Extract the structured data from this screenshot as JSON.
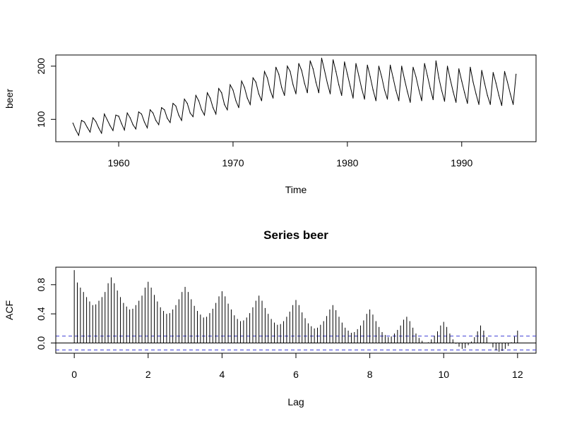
{
  "chart_data": [
    {
      "type": "line",
      "title": "",
      "xlabel": "Time",
      "ylabel": "beer",
      "xlim": [
        1954.5,
        1996.5
      ],
      "ylim": [
        58,
        221
      ],
      "xticks": [
        1960,
        1970,
        1980,
        1990
      ],
      "xtick_labels": [
        "1960",
        "1970",
        "1980",
        "1990"
      ],
      "yticks": [
        100,
        200
      ],
      "ytick_labels": [
        "100",
        "200"
      ],
      "grid": false,
      "x": [
        1956.0,
        1956.25,
        1956.5,
        1956.75,
        1957.0,
        1957.25,
        1957.5,
        1957.75,
        1958.0,
        1958.25,
        1958.5,
        1958.75,
        1959.0,
        1959.25,
        1959.5,
        1959.75,
        1960.0,
        1960.25,
        1960.5,
        1960.75,
        1961.0,
        1961.25,
        1961.5,
        1961.75,
        1962.0,
        1962.25,
        1962.5,
        1962.75,
        1963.0,
        1963.25,
        1963.5,
        1963.75,
        1964.0,
        1964.25,
        1964.5,
        1964.75,
        1965.0,
        1965.25,
        1965.5,
        1965.75,
        1966.0,
        1966.25,
        1966.5,
        1966.75,
        1967.0,
        1967.25,
        1967.5,
        1967.75,
        1968.0,
        1968.25,
        1968.5,
        1968.75,
        1969.0,
        1969.25,
        1969.5,
        1969.75,
        1970.0,
        1970.25,
        1970.5,
        1970.75,
        1971.0,
        1971.25,
        1971.5,
        1971.75,
        1972.0,
        1972.25,
        1972.5,
        1972.75,
        1973.0,
        1973.25,
        1973.5,
        1973.75,
        1974.0,
        1974.25,
        1974.5,
        1974.75,
        1975.0,
        1975.25,
        1975.5,
        1975.75,
        1976.0,
        1976.25,
        1976.5,
        1976.75,
        1977.0,
        1977.25,
        1977.5,
        1977.75,
        1978.0,
        1978.25,
        1978.5,
        1978.75,
        1979.0,
        1979.25,
        1979.5,
        1979.75,
        1980.0,
        1980.25,
        1980.5,
        1980.75,
        1981.0,
        1981.25,
        1981.5,
        1981.75,
        1982.0,
        1982.25,
        1982.5,
        1982.75,
        1983.0,
        1983.25,
        1983.5,
        1983.75,
        1984.0,
        1984.25,
        1984.5,
        1984.75,
        1985.0,
        1985.25,
        1985.5,
        1985.75,
        1986.0,
        1986.25,
        1986.5,
        1986.75,
        1987.0,
        1987.25,
        1987.5,
        1987.75,
        1988.0,
        1988.25,
        1988.5,
        1988.75,
        1989.0,
        1989.25,
        1989.5,
        1989.75,
        1990.0,
        1990.25,
        1990.5,
        1990.75,
        1991.0,
        1991.25,
        1991.5,
        1991.75,
        1992.0,
        1992.25,
        1992.5,
        1992.75,
        1993.0,
        1993.25,
        1993.5,
        1993.75,
        1994.0,
        1994.25,
        1994.5,
        1994.75
      ],
      "y": [
        93,
        80,
        70,
        98,
        95,
        85,
        76,
        103,
        96,
        84,
        74,
        110,
        99,
        88,
        79,
        108,
        106,
        92,
        80,
        112,
        103,
        90,
        82,
        114,
        110,
        95,
        84,
        118,
        112,
        98,
        90,
        122,
        118,
        102,
        94,
        130,
        125,
        108,
        98,
        138,
        130,
        112,
        105,
        145,
        135,
        118,
        108,
        150,
        140,
        122,
        110,
        158,
        150,
        128,
        118,
        165,
        155,
        135,
        122,
        172,
        160,
        140,
        128,
        178,
        170,
        148,
        135,
        190,
        178,
        155,
        140,
        198,
        185,
        160,
        145,
        200,
        190,
        165,
        148,
        205,
        192,
        168,
        150,
        210,
        195,
        170,
        150,
        215,
        192,
        168,
        148,
        212,
        190,
        165,
        145,
        208,
        185,
        162,
        140,
        205,
        182,
        158,
        138,
        202,
        180,
        155,
        135,
        200,
        180,
        155,
        138,
        202,
        178,
        154,
        135,
        200,
        175,
        152,
        132,
        198,
        180,
        156,
        135,
        205,
        182,
        158,
        137,
        210,
        178,
        154,
        134,
        200,
        175,
        152,
        132,
        195,
        172,
        150,
        130,
        198,
        170,
        148,
        128,
        192,
        168,
        145,
        128,
        188,
        168,
        145,
        126,
        190,
        170,
        148,
        128,
        185
      ]
    },
    {
      "type": "bar",
      "title": "Series  beer",
      "xlabel": "Lag",
      "ylabel": "ACF",
      "xlim": [
        -0.5,
        12.5
      ],
      "ylim": [
        -0.14,
        1.04
      ],
      "xticks": [
        0,
        2,
        4,
        6,
        8,
        10,
        12
      ],
      "xtick_labels": [
        "0",
        "2",
        "4",
        "6",
        "8",
        "10",
        "12"
      ],
      "yticks": [
        0.0,
        0.4,
        0.8
      ],
      "ytick_labels": [
        "0.0",
        "0.4",
        "0.8"
      ],
      "grid": false,
      "confidence_bound": 0.095,
      "lag_step": 0.08333,
      "values": [
        1.0,
        0.83,
        0.76,
        0.7,
        0.63,
        0.57,
        0.52,
        0.53,
        0.58,
        0.63,
        0.7,
        0.82,
        0.9,
        0.82,
        0.72,
        0.63,
        0.55,
        0.5,
        0.46,
        0.47,
        0.52,
        0.58,
        0.65,
        0.76,
        0.84,
        0.76,
        0.66,
        0.57,
        0.49,
        0.44,
        0.4,
        0.41,
        0.46,
        0.52,
        0.6,
        0.7,
        0.77,
        0.7,
        0.6,
        0.51,
        0.44,
        0.39,
        0.35,
        0.36,
        0.41,
        0.47,
        0.55,
        0.64,
        0.71,
        0.64,
        0.54,
        0.46,
        0.38,
        0.33,
        0.3,
        0.31,
        0.35,
        0.41,
        0.49,
        0.58,
        0.65,
        0.58,
        0.48,
        0.4,
        0.33,
        0.28,
        0.25,
        0.26,
        0.3,
        0.36,
        0.43,
        0.52,
        0.59,
        0.52,
        0.42,
        0.34,
        0.27,
        0.23,
        0.2,
        0.21,
        0.25,
        0.3,
        0.37,
        0.46,
        0.52,
        0.45,
        0.36,
        0.28,
        0.21,
        0.17,
        0.14,
        0.15,
        0.19,
        0.24,
        0.31,
        0.4,
        0.46,
        0.39,
        0.3,
        0.22,
        0.15,
        0.11,
        0.08,
        0.09,
        0.13,
        0.18,
        0.24,
        0.32,
        0.36,
        0.3,
        0.21,
        0.13,
        0.07,
        0.03,
        0.0,
        0.01,
        0.05,
        0.1,
        0.16,
        0.24,
        0.29,
        0.22,
        0.13,
        0.05,
        -0.01,
        -0.05,
        -0.08,
        -0.07,
        -0.03,
        0.02,
        0.08,
        0.16,
        0.24,
        0.17,
        0.08,
        0.0,
        -0.06,
        -0.1,
        -0.12,
        -0.11,
        -0.08,
        -0.04,
        0.01,
        0.09,
        0.17
      ]
    }
  ]
}
